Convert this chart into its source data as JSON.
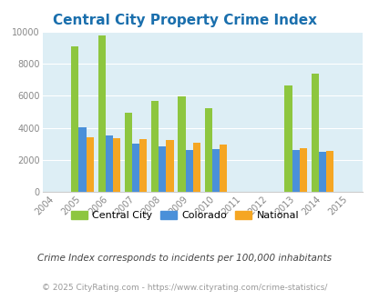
{
  "title": "Central City Property Crime Index",
  "data_years": [
    2005,
    2006,
    2007,
    2008,
    2009,
    2010,
    2013,
    2014
  ],
  "central_city": [
    9100,
    9780,
    4920,
    5700,
    5950,
    5200,
    6650,
    7400
  ],
  "colorado": [
    4050,
    3500,
    3030,
    2820,
    2620,
    2670,
    2620,
    2500
  ],
  "national": [
    3420,
    3380,
    3290,
    3230,
    3050,
    2960,
    2720,
    2570
  ],
  "color_central": "#8dc63f",
  "color_colorado": "#4a90d9",
  "color_national": "#f5a623",
  "background_color": "#ddeef5",
  "xlim_min": 2003.5,
  "xlim_max": 2015.5,
  "ylim": [
    0,
    10000
  ],
  "yticks": [
    0,
    2000,
    4000,
    6000,
    8000,
    10000
  ],
  "xticks": [
    2004,
    2005,
    2006,
    2007,
    2008,
    2009,
    2010,
    2011,
    2012,
    2013,
    2014,
    2015
  ],
  "legend_labels": [
    "Central City",
    "Colorado",
    "National"
  ],
  "footnote1": "Crime Index corresponds to incidents per 100,000 inhabitants",
  "footnote2": "© 2025 CityRating.com - https://www.cityrating.com/crime-statistics/",
  "title_color": "#1a6fad",
  "footnote1_color": "#444444",
  "footnote2_color": "#999999",
  "bar_width": 0.28
}
